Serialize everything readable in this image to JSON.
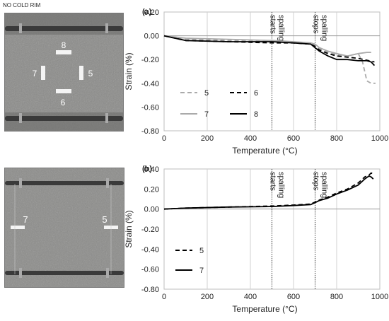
{
  "figure": {
    "header": "NO COLD RIM",
    "panel_a_photo_labels": [
      {
        "text": "8"
      },
      {
        "text": "7"
      },
      {
        "text": "5"
      },
      {
        "text": "6"
      }
    ],
    "panel_b_photo_labels": [
      {
        "text": "7"
      },
      {
        "text": "5"
      }
    ]
  },
  "chart_data": [
    {
      "type": "line",
      "panel_label": "(a)",
      "xlabel": "Temperature (°C)",
      "ylabel": "Strain (%)",
      "xlim": [
        0,
        1000
      ],
      "ylim": [
        -0.8,
        0.2
      ],
      "xticks": [
        "0",
        "200",
        "400",
        "600",
        "800",
        "1000"
      ],
      "yticks": [
        "0.20",
        "0.00",
        "-0.20",
        "-0.40",
        "-0.60",
        "-0.80"
      ],
      "grid": "vertical",
      "legend_position": "lower-left inside",
      "annotations": [
        {
          "text": "spalling starts",
          "lines": [
            "spalling",
            "starts"
          ],
          "x": 500
        },
        {
          "text": "spalling stops",
          "lines": [
            "spalling",
            "stops"
          ],
          "x": 700
        }
      ],
      "series": [
        {
          "name": "5",
          "color": "#aaaaaa",
          "dash": "dashed",
          "width": 1.8,
          "x": [
            0,
            100,
            300,
            500,
            600,
            680,
            700,
            720,
            760,
            800,
            850,
            900,
            920,
            940,
            960,
            980
          ],
          "y": [
            0.0,
            -0.03,
            -0.04,
            -0.05,
            -0.06,
            -0.07,
            -0.08,
            -0.11,
            -0.14,
            -0.16,
            -0.17,
            -0.15,
            -0.22,
            -0.38,
            -0.4,
            -0.4
          ]
        },
        {
          "name": "6",
          "color": "#000000",
          "dash": "dashed",
          "width": 1.8,
          "x": [
            0,
            100,
            300,
            500,
            600,
            680,
            700,
            720,
            760,
            800,
            850,
            900,
            950,
            975
          ],
          "y": [
            0.0,
            -0.04,
            -0.05,
            -0.06,
            -0.06,
            -0.07,
            -0.09,
            -0.12,
            -0.15,
            -0.17,
            -0.18,
            -0.19,
            -0.21,
            -0.22
          ]
        },
        {
          "name": "7",
          "color": "#aaaaaa",
          "dash": "solid",
          "width": 1.8,
          "x": [
            0,
            100,
            300,
            500,
            600,
            680,
            700,
            720,
            760,
            800,
            850,
            900,
            940,
            960
          ],
          "y": [
            0.0,
            -0.02,
            -0.03,
            -0.04,
            -0.05,
            -0.06,
            -0.07,
            -0.1,
            -0.13,
            -0.15,
            -0.17,
            -0.15,
            -0.14,
            -0.14
          ]
        },
        {
          "name": "8",
          "color": "#000000",
          "dash": "solid",
          "width": 1.8,
          "x": [
            0,
            50,
            100,
            300,
            500,
            600,
            680,
            700,
            720,
            760,
            800,
            850,
            900,
            940,
            960,
            975
          ],
          "y": [
            0.0,
            -0.02,
            -0.04,
            -0.05,
            -0.05,
            -0.06,
            -0.07,
            -0.1,
            -0.13,
            -0.17,
            -0.2,
            -0.2,
            -0.21,
            -0.21,
            -0.22,
            -0.25
          ]
        }
      ]
    },
    {
      "type": "line",
      "panel_label": "(b)",
      "xlabel": "Temperature (°C)",
      "ylabel": "Strain (%)",
      "xlim": [
        0,
        1000
      ],
      "ylim": [
        -0.8,
        0.4
      ],
      "xticks": [
        "0",
        "200",
        "400",
        "600",
        "800",
        "1000"
      ],
      "yticks": [
        "0.40",
        "0.20",
        "0.00",
        "-0.20",
        "-0.40",
        "-0.60",
        "-0.80"
      ],
      "grid": "vertical",
      "legend_position": "lower-left inside",
      "annotations": [
        {
          "text": "spalling starts",
          "lines": [
            "spalling",
            "starts"
          ],
          "x": 500
        },
        {
          "text": "spalling stops",
          "lines": [
            "spalling",
            "stops"
          ],
          "x": 700
        }
      ],
      "series": [
        {
          "name": "5",
          "color": "#000000",
          "dash": "dashed",
          "width": 1.8,
          "x": [
            0,
            100,
            300,
            500,
            600,
            680,
            700,
            720,
            760,
            800,
            850,
            900,
            930,
            950,
            960,
            970
          ],
          "y": [
            0.0,
            0.01,
            0.02,
            0.03,
            0.04,
            0.05,
            0.07,
            0.09,
            0.12,
            0.16,
            0.2,
            0.26,
            0.32,
            0.34,
            0.36,
            0.35
          ]
        },
        {
          "name": "7",
          "color": "#000000",
          "dash": "solid",
          "width": 1.8,
          "x": [
            0,
            100,
            300,
            500,
            600,
            680,
            700,
            720,
            760,
            800,
            850,
            900,
            930,
            950,
            960,
            970
          ],
          "y": [
            0.0,
            0.01,
            0.02,
            0.025,
            0.035,
            0.045,
            0.065,
            0.085,
            0.11,
            0.15,
            0.19,
            0.24,
            0.3,
            0.33,
            0.32,
            0.3
          ]
        }
      ]
    }
  ]
}
